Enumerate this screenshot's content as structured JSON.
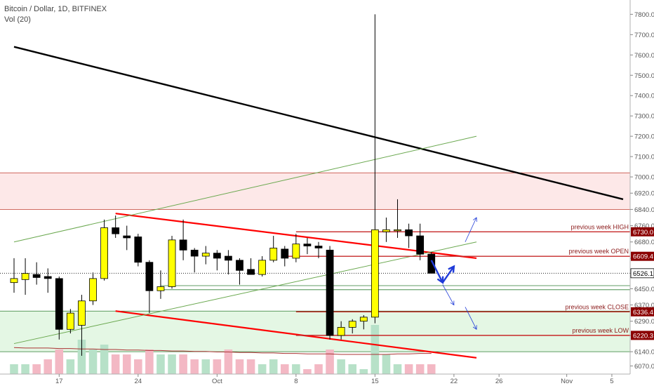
{
  "header": {
    "symbol": "Bitcoin / Dollar, 1D, BITFINEX",
    "indicator": "Vol (20)"
  },
  "colors": {
    "bull": "#ffff00",
    "bear": "#000000",
    "trendline": "#ff0000",
    "resistance": "#000000",
    "channel": "#6aa84f",
    "arrow": "#1f3bd8",
    "zone_red": "#fde8e8",
    "zone_green": "#e4f7e4",
    "vol_bull": "#b7e1c8",
    "vol_bear": "#f3b8c4"
  },
  "chart_data": {
    "type": "candlestick",
    "y_axis": {
      "range": [
        6030,
        7860
      ],
      "ticks": [
        6070.0,
        6140.0,
        6220.0,
        6290.0,
        6370.0,
        6450.0,
        6526.0,
        6600.0,
        6680.0,
        6760.0,
        6840.0,
        6920.0,
        7000.0,
        7100.0,
        7200.0,
        7300.0,
        7400.0,
        7500.0,
        7600.0,
        7700.0,
        7800.0
      ],
      "tick_labels": [
        "6070.0",
        "6140.0",
        "",
        "6290.0",
        "6370.0",
        "6450.0",
        "",
        "",
        "6680.0",
        "6760.0",
        "6840.0",
        "6920.0",
        "7000.0",
        "7100.0",
        "7200.0",
        "7300.0",
        "7400.0",
        "7500.0",
        "7600.0",
        "7700.0",
        "7800.0"
      ]
    },
    "x_axis": {
      "start_date": "2018-09-13",
      "end_date": "2018-11-06",
      "ticks": [
        {
          "date": "2018-09-17",
          "label": "17"
        },
        {
          "date": "2018-09-24",
          "label": "24"
        },
        {
          "date": "2018-10-01",
          "label": "Oct"
        },
        {
          "date": "2018-10-08",
          "label": "8"
        },
        {
          "date": "2018-10-15",
          "label": "15"
        },
        {
          "date": "2018-10-22",
          "label": "22"
        },
        {
          "date": "2018-10-26",
          "label": "26"
        },
        {
          "date": "2018-11-01",
          "label": "Nov"
        },
        {
          "date": "2018-11-05",
          "label": "5"
        }
      ]
    },
    "candles": [
      {
        "date": "2018-09-13",
        "o": 6480,
        "h": 6600,
        "l": 6430,
        "c": 6500
      },
      {
        "date": "2018-09-14",
        "o": 6495,
        "h": 6600,
        "l": 6420,
        "c": 6525
      },
      {
        "date": "2018-09-15",
        "o": 6520,
        "h": 6580,
        "l": 6470,
        "c": 6505
      },
      {
        "date": "2018-09-16",
        "o": 6510,
        "h": 6550,
        "l": 6430,
        "c": 6500
      },
      {
        "date": "2018-09-17",
        "o": 6500,
        "h": 6510,
        "l": 6200,
        "c": 6250
      },
      {
        "date": "2018-09-18",
        "o": 6250,
        "h": 6350,
        "l": 6230,
        "c": 6330
      },
      {
        "date": "2018-09-19",
        "o": 6270,
        "h": 6420,
        "l": 6120,
        "c": 6390
      },
      {
        "date": "2018-09-20",
        "o": 6390,
        "h": 6530,
        "l": 6370,
        "c": 6500
      },
      {
        "date": "2018-09-21",
        "o": 6500,
        "h": 6790,
        "l": 6490,
        "c": 6750
      },
      {
        "date": "2018-09-22",
        "o": 6750,
        "h": 6810,
        "l": 6700,
        "c": 6720
      },
      {
        "date": "2018-09-23",
        "o": 6710,
        "h": 6760,
        "l": 6640,
        "c": 6700
      },
      {
        "date": "2018-09-24",
        "o": 6705,
        "h": 6720,
        "l": 6560,
        "c": 6580
      },
      {
        "date": "2018-09-25",
        "o": 6580,
        "h": 6590,
        "l": 6330,
        "c": 6440
      },
      {
        "date": "2018-09-26",
        "o": 6440,
        "h": 6540,
        "l": 6400,
        "c": 6460
      },
      {
        "date": "2018-09-27",
        "o": 6460,
        "h": 6710,
        "l": 6450,
        "c": 6690
      },
      {
        "date": "2018-09-28",
        "o": 6690,
        "h": 6790,
        "l": 6590,
        "c": 6640
      },
      {
        "date": "2018-09-29",
        "o": 6640,
        "h": 6650,
        "l": 6530,
        "c": 6610
      },
      {
        "date": "2018-09-30",
        "o": 6610,
        "h": 6660,
        "l": 6570,
        "c": 6625
      },
      {
        "date": "2018-10-01",
        "o": 6625,
        "h": 6640,
        "l": 6540,
        "c": 6600
      },
      {
        "date": "2018-10-02",
        "o": 6610,
        "h": 6640,
        "l": 6520,
        "c": 6590
      },
      {
        "date": "2018-10-03",
        "o": 6590,
        "h": 6600,
        "l": 6470,
        "c": 6540
      },
      {
        "date": "2018-10-04",
        "o": 6545,
        "h": 6600,
        "l": 6520,
        "c": 6520
      },
      {
        "date": "2018-10-05",
        "o": 6520,
        "h": 6610,
        "l": 6510,
        "c": 6590
      },
      {
        "date": "2018-10-06",
        "o": 6590,
        "h": 6710,
        "l": 6580,
        "c": 6650
      },
      {
        "date": "2018-10-07",
        "o": 6645,
        "h": 6660,
        "l": 6560,
        "c": 6600
      },
      {
        "date": "2018-10-08",
        "o": 6600,
        "h": 6720,
        "l": 6580,
        "c": 6670
      },
      {
        "date": "2018-10-09",
        "o": 6670,
        "h": 6700,
        "l": 6620,
        "c": 6660
      },
      {
        "date": "2018-10-10",
        "o": 6660,
        "h": 6680,
        "l": 6600,
        "c": 6650
      },
      {
        "date": "2018-10-11",
        "o": 6640,
        "h": 6660,
        "l": 6200,
        "c": 6220
      },
      {
        "date": "2018-10-12",
        "o": 6220,
        "h": 6290,
        "l": 6200,
        "c": 6260
      },
      {
        "date": "2018-10-13",
        "o": 6260,
        "h": 6300,
        "l": 6230,
        "c": 6290
      },
      {
        "date": "2018-10-14",
        "o": 6290,
        "h": 6320,
        "l": 6250,
        "c": 6310
      },
      {
        "date": "2018-10-15",
        "o": 6310,
        "h": 7800,
        "l": 6280,
        "c": 6740
      },
      {
        "date": "2018-10-16",
        "o": 6730,
        "h": 6800,
        "l": 6680,
        "c": 6740
      },
      {
        "date": "2018-10-17",
        "o": 6740,
        "h": 6890,
        "l": 6700,
        "c": 6740
      },
      {
        "date": "2018-10-18",
        "o": 6740,
        "h": 6770,
        "l": 6650,
        "c": 6710
      },
      {
        "date": "2018-10-19",
        "o": 6710,
        "h": 6770,
        "l": 6590,
        "c": 6620
      },
      {
        "date": "2018-10-20",
        "o": 6620,
        "h": 6630,
        "l": 6526,
        "c": 6526
      }
    ],
    "volume": [
      2,
      2,
      2,
      3,
      5,
      3,
      7,
      5,
      6,
      4,
      4,
      3,
      5,
      4,
      4,
      4,
      3,
      3,
      3,
      5,
      3,
      3,
      2,
      3,
      2,
      2,
      1,
      2,
      5,
      3,
      2,
      1,
      10,
      4,
      2,
      2,
      2,
      2
    ],
    "volume_ma": [
      5.4,
      5.3,
      5.3,
      5.3,
      5.2,
      5.2,
      5.1,
      5.1,
      5.0,
      5.0,
      4.9,
      4.9,
      4.8,
      4.8,
      4.7,
      4.7,
      4.6,
      4.6,
      4.5,
      4.5,
      4.4,
      4.4,
      4.3,
      4.3,
      4.2,
      4.2,
      4.1,
      4.1,
      4.1,
      4.0,
      4.0,
      4.0,
      4.0,
      4.0,
      4.1,
      4.1,
      4.2,
      4.2
    ],
    "current_price": {
      "value": 6526.1,
      "label": "6526.1"
    },
    "levels": [
      {
        "name": "previous week HIGH",
        "value": 6730.0,
        "label": "6730.0",
        "from": "2018-10-08"
      },
      {
        "name": "previous week OPEN",
        "value": 6609.4,
        "label": "6609.4",
        "from": "2018-10-07"
      },
      {
        "name": "previous week CLOSE",
        "value": 6336.4,
        "label": "6336.4",
        "from": "2018-10-08"
      },
      {
        "name": "previous week LOW",
        "value": 6220.3,
        "label": "6220.3",
        "from": "2018-10-08"
      }
    ],
    "zones": [
      {
        "kind": "resistance",
        "from": 6840,
        "to": 7020
      },
      {
        "kind": "support",
        "from": 6140,
        "to": 6340
      }
    ],
    "green_band_lines": [
      6465,
      6445
    ],
    "trendlines": [
      {
        "kind": "descending-resistance",
        "p1": {
          "date": "2018-09-13",
          "price": 7640
        },
        "p2": {
          "date": "2018-11-06",
          "price": 6890
        }
      },
      {
        "kind": "wedge-top",
        "p1": {
          "date": "2018-09-22",
          "price": 6820
        },
        "p2": {
          "date": "2018-10-24",
          "price": 6600
        }
      },
      {
        "kind": "wedge-bottom",
        "p1": {
          "date": "2018-09-22",
          "price": 6340
        },
        "p2": {
          "date": "2018-10-24",
          "price": 6110
        }
      },
      {
        "kind": "channel-upper",
        "p1": {
          "date": "2018-09-13",
          "price": 6680
        },
        "p2": {
          "date": "2018-10-24",
          "price": 7200
        }
      },
      {
        "kind": "channel-lower",
        "p1": {
          "date": "2018-09-13",
          "price": 6180
        },
        "p2": {
          "date": "2018-10-24",
          "price": 6680
        }
      }
    ],
    "projection_arrows": [
      {
        "from": {
          "date": "2018-10-20",
          "price": 6590
        },
        "to": {
          "date": "2018-10-21",
          "price": 6480
        },
        "bold": true
      },
      {
        "from": {
          "date": "2018-10-21",
          "price": 6480
        },
        "to": {
          "date": "2018-10-22",
          "price": 6560
        },
        "bold": true
      },
      {
        "from": {
          "date": "2018-10-23",
          "price": 6680
        },
        "to": {
          "date": "2018-10-24",
          "price": 6800
        },
        "bold": false
      },
      {
        "from": {
          "date": "2018-10-21",
          "price": 6470
        },
        "to": {
          "date": "2018-10-22",
          "price": 6370
        },
        "bold": false
      },
      {
        "from": {
          "date": "2018-10-23",
          "price": 6360
        },
        "to": {
          "date": "2018-10-24",
          "price": 6250
        },
        "bold": false
      }
    ]
  }
}
